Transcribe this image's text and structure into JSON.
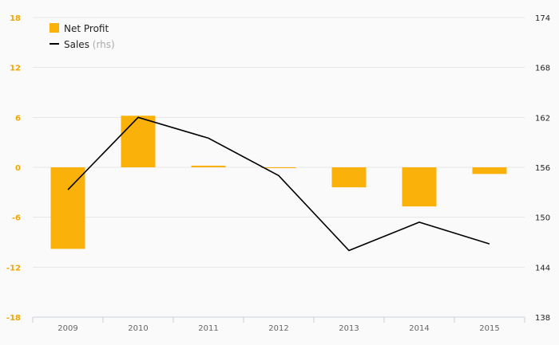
{
  "chart_data": {
    "type": "bar",
    "categories": [
      "2009",
      "2010",
      "2011",
      "2012",
      "2013",
      "2014",
      "2015"
    ],
    "series": [
      {
        "name": "Net Profit",
        "type": "bar",
        "axis": "left",
        "color": "#FAB20B",
        "values": [
          -9.8,
          6.2,
          0.2,
          -0.1,
          -2.4,
          -4.7,
          -0.8
        ]
      },
      {
        "name": "Sales",
        "type": "line",
        "axis": "right",
        "color": "#000000",
        "values": [
          153.3,
          162.0,
          159.5,
          155.0,
          146.0,
          149.4,
          146.8
        ]
      }
    ],
    "legend": {
      "bar_label": "Net Profit",
      "line_label": "Sales",
      "line_suffix": "(rhs)",
      "placement": "top-left"
    },
    "yleft": {
      "ticks": [
        "18",
        "12",
        "6",
        "0",
        "-6",
        "-12",
        "-18"
      ],
      "ylim": [
        -18,
        18
      ],
      "tick_color": "#F0A500"
    },
    "yright": {
      "ticks": [
        "174",
        "168",
        "162",
        "156",
        "150",
        "144",
        "138"
      ],
      "ylim": [
        138,
        174
      ]
    },
    "grid": true
  }
}
